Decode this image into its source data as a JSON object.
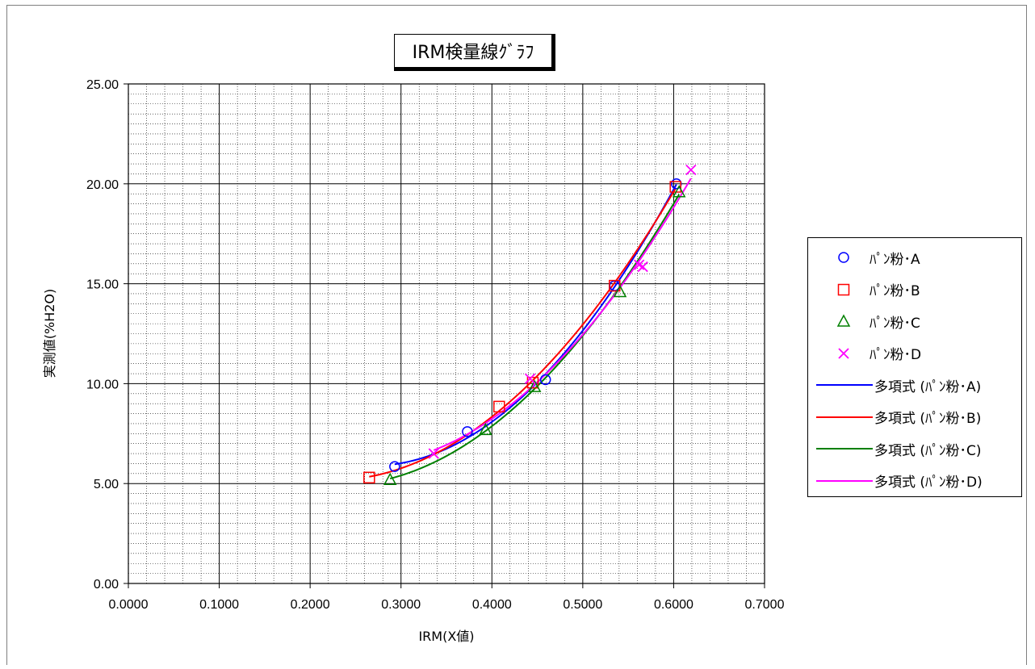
{
  "chart_data": {
    "type": "scatter",
    "title": "IRM検量線ｸﾞﾗﾌ",
    "xlabel": "IRM(X値)",
    "ylabel": "実測値(%H2O)",
    "xlim": [
      0,
      0.7
    ],
    "ylim": [
      0,
      25
    ],
    "x_ticks": [
      "0.0000",
      "0.1000",
      "0.2000",
      "0.3000",
      "0.4000",
      "0.5000",
      "0.6000",
      "0.7000"
    ],
    "y_ticks": [
      "0.00",
      "5.00",
      "10.00",
      "15.00",
      "20.00",
      "25.00"
    ],
    "grid": true,
    "legend_position": "right",
    "series": [
      {
        "name": "ﾊﾟﾝ粉･A",
        "marker": "circle",
        "color": "#0000ff",
        "points": [
          [
            0.293,
            5.85
          ],
          [
            0.373,
            7.6
          ],
          [
            0.459,
            10.2
          ],
          [
            0.535,
            14.9
          ],
          [
            0.603,
            20.0
          ]
        ]
      },
      {
        "name": "ﾊﾟﾝ粉･B",
        "marker": "square",
        "color": "#ff0000",
        "points": [
          [
            0.265,
            5.3
          ],
          [
            0.408,
            8.85
          ],
          [
            0.445,
            10.05
          ],
          [
            0.535,
            14.9
          ],
          [
            0.602,
            19.85
          ]
        ]
      },
      {
        "name": "ﾊﾟﾝ粉･C",
        "marker": "triangle",
        "color": "#008000",
        "points": [
          [
            0.288,
            5.2
          ],
          [
            0.393,
            7.7
          ],
          [
            0.447,
            9.85
          ],
          [
            0.541,
            14.6
          ],
          [
            0.606,
            19.6
          ]
        ]
      },
      {
        "name": "ﾊﾟﾝ粉･D",
        "marker": "x",
        "color": "#ff00ff",
        "points": [
          [
            0.336,
            6.5
          ],
          [
            0.442,
            10.25
          ],
          [
            0.562,
            15.95
          ],
          [
            0.566,
            15.85
          ],
          [
            0.619,
            20.7
          ]
        ]
      }
    ],
    "trendlines": [
      {
        "name": "多項式 (ﾊﾟﾝ粉･A)",
        "color": "#0000ff",
        "x_range": [
          0.293,
          0.603
        ]
      },
      {
        "name": "多項式 (ﾊﾟﾝ粉･B)",
        "color": "#ff0000",
        "x_range": [
          0.265,
          0.602
        ]
      },
      {
        "name": "多項式 (ﾊﾟﾝ粉･C)",
        "color": "#008000",
        "x_range": [
          0.288,
          0.606
        ]
      },
      {
        "name": "多項式 (ﾊﾟﾝ粉･D)",
        "color": "#ff00ff",
        "x_range": [
          0.336,
          0.619
        ]
      }
    ]
  }
}
